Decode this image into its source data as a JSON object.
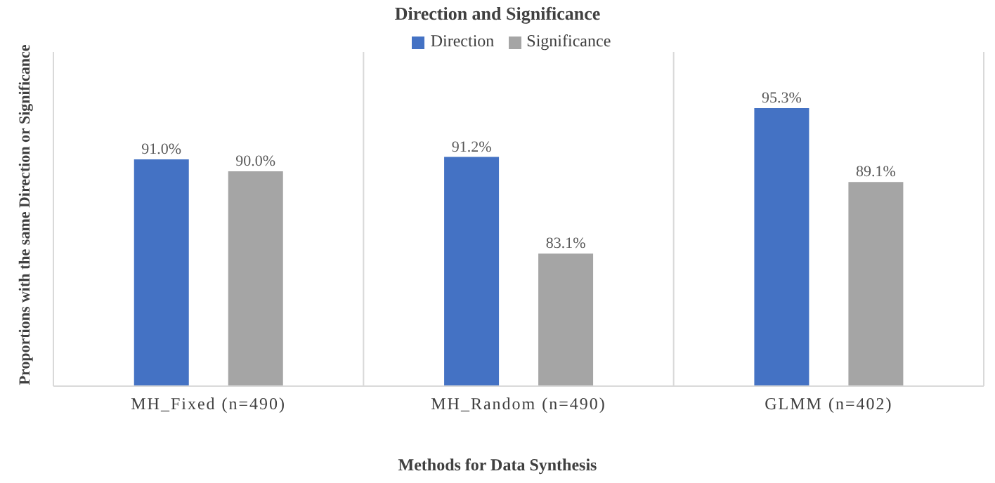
{
  "chart_data": {
    "type": "bar",
    "title": "Direction and Significance",
    "xlabel": "Methods for Data Synthesis",
    "ylabel": "Proportions with the same Direction or Significance",
    "categories": [
      "MH_Fixed (n=490)",
      "MH_Random (n=490)",
      "GLMM (n=402)"
    ],
    "series": [
      {
        "name": "Direction",
        "color": "#4472c4",
        "values": [
          91.0,
          91.2,
          95.3
        ],
        "value_labels": [
          "91.0%",
          "91.2%",
          "95.3%"
        ]
      },
      {
        "name": "Significance",
        "color": "#a5a5a5",
        "values": [
          90.0,
          83.1,
          89.1
        ],
        "value_labels": [
          "90.0%",
          "83.1%",
          "89.1%"
        ]
      }
    ],
    "ylim": [
      72,
      100
    ],
    "tick_labels": "x",
    "grid": "x",
    "legend": "top"
  }
}
